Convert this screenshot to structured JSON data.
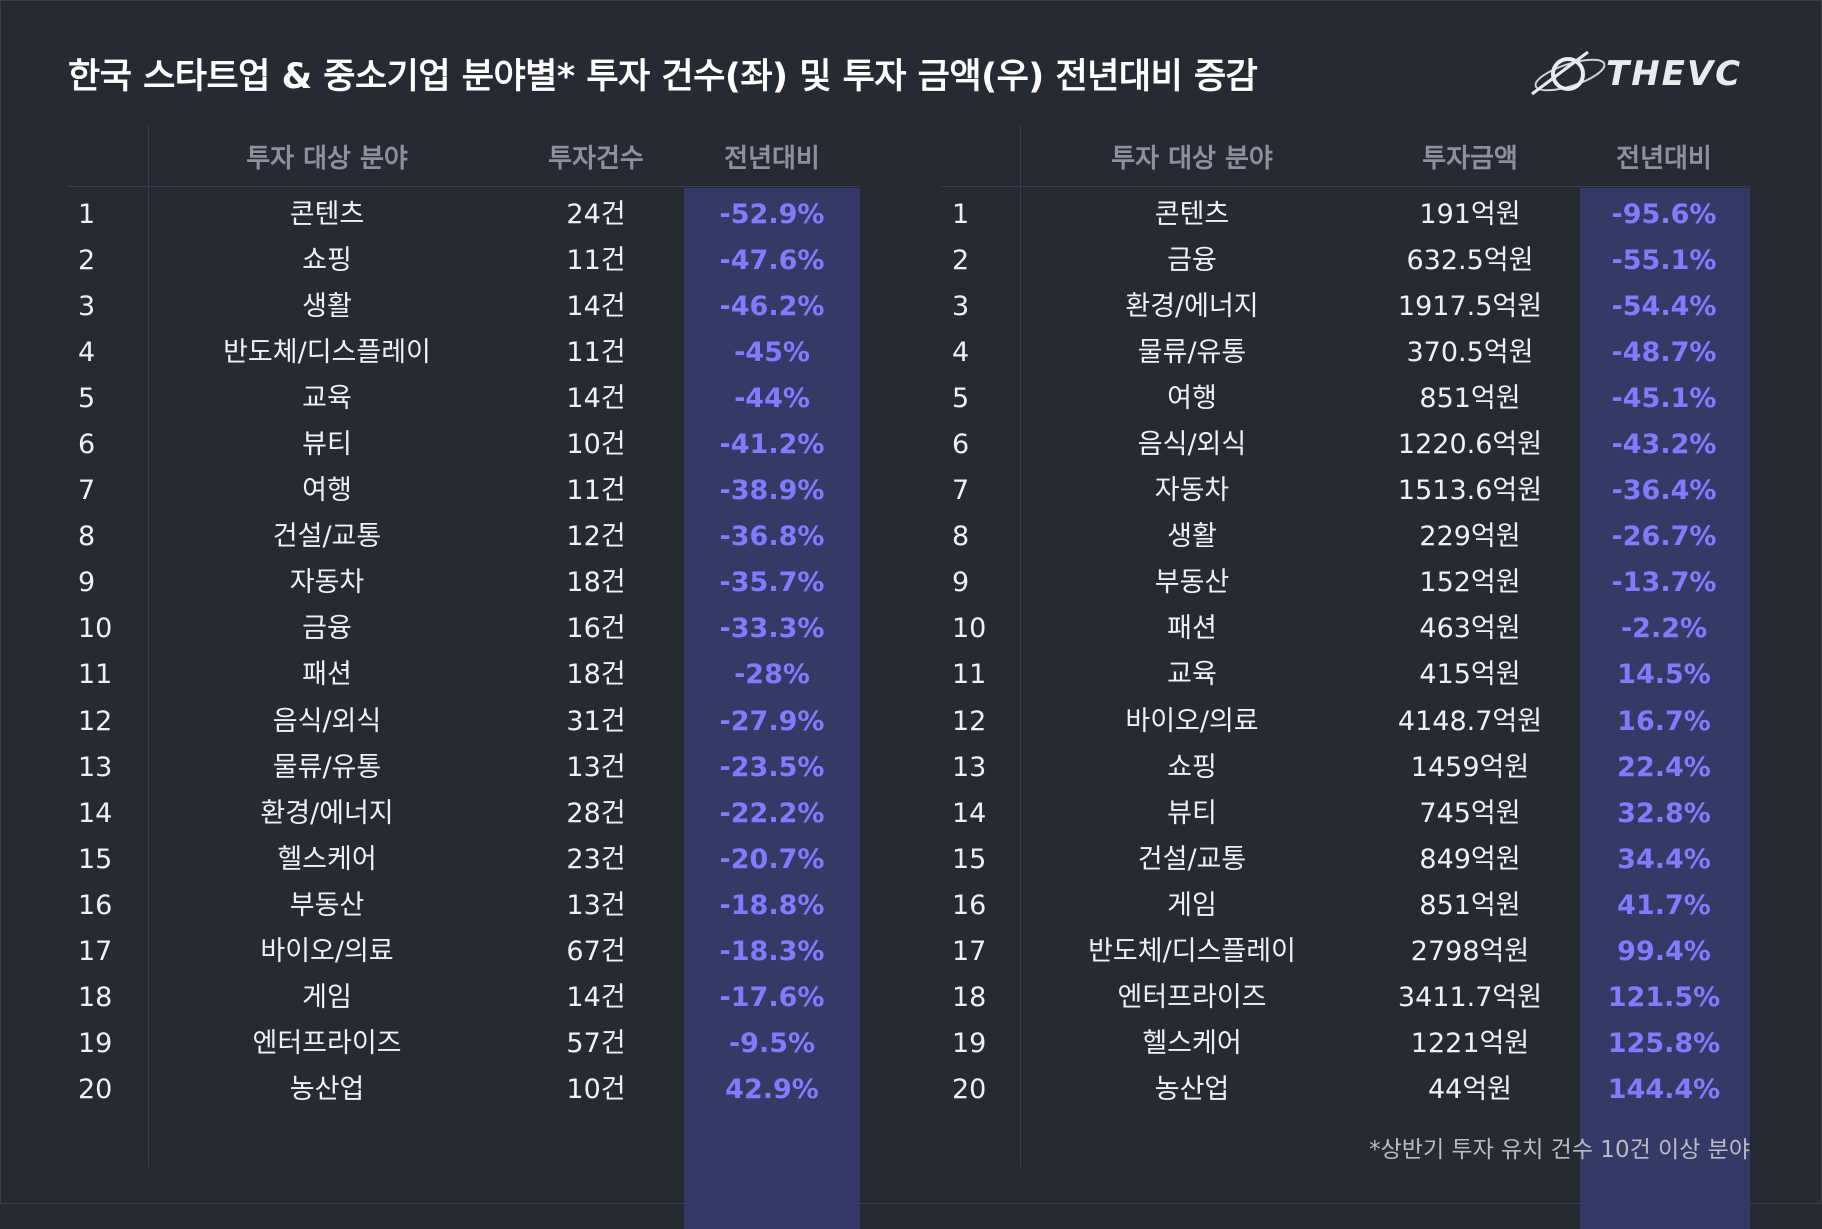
{
  "title": "한국 스타트업 & 중소기업 분야별* 투자 건수(좌) 및 투자 금액(우) 전년대비 증감",
  "logo": "THEVC",
  "footnote": "*상반기 투자 유치 건수 10건 이상 분야",
  "colors": {
    "background": "#262a33",
    "highlight": "#343965",
    "accent": "#7f7cff"
  },
  "left_table": {
    "headers": {
      "field": "투자 대상 분야",
      "value": "투자건수",
      "change": "전년대비"
    },
    "rows": [
      {
        "rank": "1",
        "field": "콘텐츠",
        "value": "24건",
        "change": "-52.9%"
      },
      {
        "rank": "2",
        "field": "쇼핑",
        "value": "11건",
        "change": "-47.6%"
      },
      {
        "rank": "3",
        "field": "생활",
        "value": "14건",
        "change": "-46.2%"
      },
      {
        "rank": "4",
        "field": "반도체/디스플레이",
        "value": "11건",
        "change": "-45%"
      },
      {
        "rank": "5",
        "field": "교육",
        "value": "14건",
        "change": "-44%"
      },
      {
        "rank": "6",
        "field": "뷰티",
        "value": "10건",
        "change": "-41.2%"
      },
      {
        "rank": "7",
        "field": "여행",
        "value": "11건",
        "change": "-38.9%"
      },
      {
        "rank": "8",
        "field": "건설/교통",
        "value": "12건",
        "change": "-36.8%"
      },
      {
        "rank": "9",
        "field": "자동차",
        "value": "18건",
        "change": "-35.7%"
      },
      {
        "rank": "10",
        "field": "금융",
        "value": "16건",
        "change": "-33.3%"
      },
      {
        "rank": "11",
        "field": "패션",
        "value": "18건",
        "change": "-28%"
      },
      {
        "rank": "12",
        "field": "음식/외식",
        "value": "31건",
        "change": "-27.9%"
      },
      {
        "rank": "13",
        "field": "물류/유통",
        "value": "13건",
        "change": "-23.5%"
      },
      {
        "rank": "14",
        "field": "환경/에너지",
        "value": "28건",
        "change": "-22.2%"
      },
      {
        "rank": "15",
        "field": "헬스케어",
        "value": "23건",
        "change": "-20.7%"
      },
      {
        "rank": "16",
        "field": "부동산",
        "value": "13건",
        "change": "-18.8%"
      },
      {
        "rank": "17",
        "field": "바이오/의료",
        "value": "67건",
        "change": "-18.3%"
      },
      {
        "rank": "18",
        "field": "게임",
        "value": "14건",
        "change": "-17.6%"
      },
      {
        "rank": "19",
        "field": "엔터프라이즈",
        "value": "57건",
        "change": "-9.5%"
      },
      {
        "rank": "20",
        "field": "농산업",
        "value": "10건",
        "change": "42.9%"
      }
    ]
  },
  "right_table": {
    "headers": {
      "field": "투자 대상 분야",
      "value": "투자금액",
      "change": "전년대비"
    },
    "rows": [
      {
        "rank": "1",
        "field": "콘텐츠",
        "value": "191억원",
        "change": "-95.6%"
      },
      {
        "rank": "2",
        "field": "금융",
        "value": "632.5억원",
        "change": "-55.1%"
      },
      {
        "rank": "3",
        "field": "환경/에너지",
        "value": "1917.5억원",
        "change": "-54.4%"
      },
      {
        "rank": "4",
        "field": "물류/유통",
        "value": "370.5억원",
        "change": "-48.7%"
      },
      {
        "rank": "5",
        "field": "여행",
        "value": "851억원",
        "change": "-45.1%"
      },
      {
        "rank": "6",
        "field": "음식/외식",
        "value": "1220.6억원",
        "change": "-43.2%"
      },
      {
        "rank": "7",
        "field": "자동차",
        "value": "1513.6억원",
        "change": "-36.4%"
      },
      {
        "rank": "8",
        "field": "생활",
        "value": "229억원",
        "change": "-26.7%"
      },
      {
        "rank": "9",
        "field": "부동산",
        "value": "152억원",
        "change": "-13.7%"
      },
      {
        "rank": "10",
        "field": "패션",
        "value": "463억원",
        "change": "-2.2%"
      },
      {
        "rank": "11",
        "field": "교육",
        "value": "415억원",
        "change": "14.5%"
      },
      {
        "rank": "12",
        "field": "바이오/의료",
        "value": "4148.7억원",
        "change": "16.7%"
      },
      {
        "rank": "13",
        "field": "쇼핑",
        "value": "1459억원",
        "change": "22.4%"
      },
      {
        "rank": "14",
        "field": "뷰티",
        "value": "745억원",
        "change": "32.8%"
      },
      {
        "rank": "15",
        "field": "건설/교통",
        "value": "849억원",
        "change": "34.4%"
      },
      {
        "rank": "16",
        "field": "게임",
        "value": "851억원",
        "change": "41.7%"
      },
      {
        "rank": "17",
        "field": "반도체/디스플레이",
        "value": "2798억원",
        "change": "99.4%"
      },
      {
        "rank": "18",
        "field": "엔터프라이즈",
        "value": "3411.7억원",
        "change": "121.5%"
      },
      {
        "rank": "19",
        "field": "헬스케어",
        "value": "1221억원",
        "change": "125.8%"
      },
      {
        "rank": "20",
        "field": "농산업",
        "value": "44억원",
        "change": "144.4%"
      }
    ]
  },
  "chart_data": [
    {
      "type": "table",
      "columns": [
        "투자 대상 분야",
        "투자건수",
        "전년대비"
      ],
      "categories": [
        "콘텐츠",
        "쇼핑",
        "생활",
        "반도체/디스플레이",
        "교육",
        "뷰티",
        "여행",
        "건설/교통",
        "자동차",
        "금융",
        "패션",
        "음식/외식",
        "물류/유통",
        "환경/에너지",
        "헬스케어",
        "부동산",
        "바이오/의료",
        "게임",
        "엔터프라이즈",
        "농산업"
      ],
      "series": [
        {
          "name": "투자건수",
          "values": [
            24,
            11,
            14,
            11,
            14,
            10,
            11,
            12,
            18,
            16,
            18,
            31,
            13,
            28,
            23,
            13,
            67,
            14,
            57,
            10
          ]
        },
        {
          "name": "전년대비",
          "values": [
            -52.9,
            -47.6,
            -46.2,
            -45,
            -44,
            -41.2,
            -38.9,
            -36.8,
            -35.7,
            -33.3,
            -28,
            -27.9,
            -23.5,
            -22.2,
            -20.7,
            -18.8,
            -18.3,
            -17.6,
            -9.5,
            42.9
          ]
        }
      ]
    },
    {
      "type": "table",
      "columns": [
        "투자 대상 분야",
        "투자금액",
        "전년대비"
      ],
      "categories": [
        "콘텐츠",
        "금융",
        "환경/에너지",
        "물류/유통",
        "여행",
        "음식/외식",
        "자동차",
        "생활",
        "부동산",
        "패션",
        "교육",
        "바이오/의료",
        "쇼핑",
        "뷰티",
        "건설/교통",
        "게임",
        "반도체/디스플레이",
        "엔터프라이즈",
        "헬스케어",
        "농산업"
      ],
      "series": [
        {
          "name": "투자금액",
          "values": [
            191,
            632.5,
            1917.5,
            370.5,
            851,
            1220.6,
            1513.6,
            229,
            152,
            463,
            415,
            4148.7,
            1459,
            745,
            849,
            851,
            2798,
            3411.7,
            1221,
            44
          ]
        },
        {
          "name": "전년대비",
          "values": [
            -95.6,
            -55.1,
            -54.4,
            -48.7,
            -45.1,
            -43.2,
            -36.4,
            -26.7,
            -13.7,
            -2.2,
            14.5,
            16.7,
            22.4,
            32.8,
            34.4,
            41.7,
            99.4,
            121.5,
            125.8,
            144.4
          ]
        }
      ]
    }
  ]
}
